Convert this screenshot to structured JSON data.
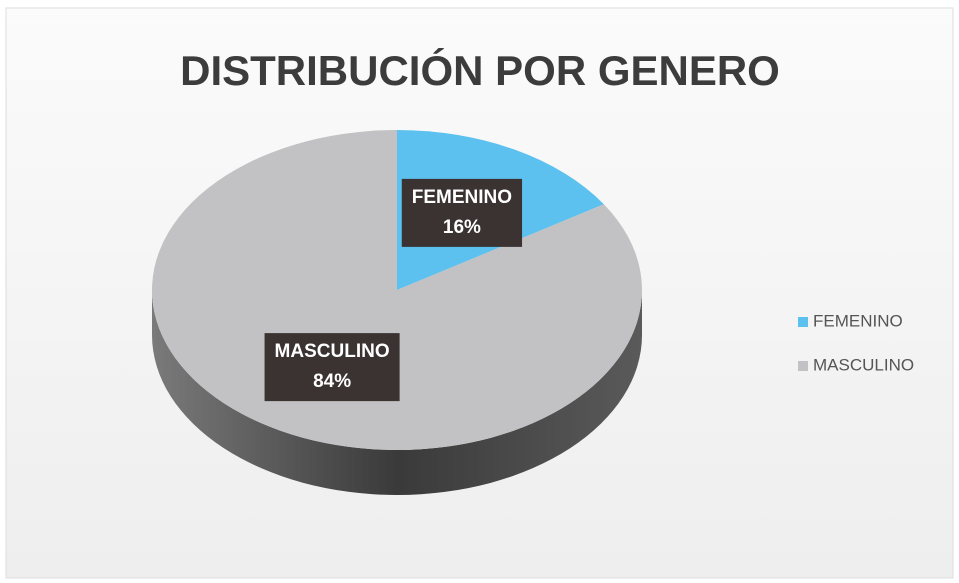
{
  "chart_data": {
    "type": "pie",
    "title": "DISTRIBUCIÓN POR GENERO",
    "categories": [
      "FEMENINO",
      "MASCULINO"
    ],
    "values": [
      16,
      84
    ],
    "value_labels": [
      "16%",
      "84%"
    ],
    "colors": [
      "#5cc1ee",
      "#c2c2c4"
    ],
    "legend": "right"
  }
}
